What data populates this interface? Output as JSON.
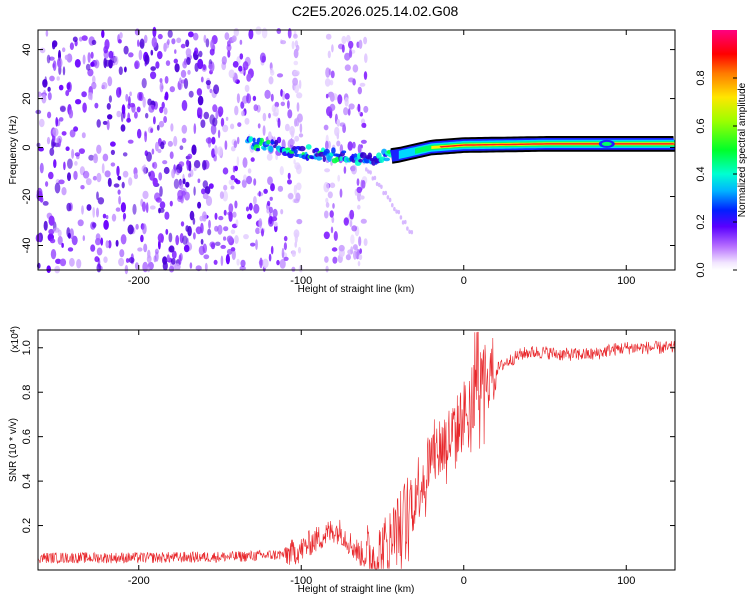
{
  "figure_title": "C2E5.2026.025.14.02.G08",
  "chart_data": [
    {
      "type": "heatmap",
      "title": "C2E5.2026.025.14.02.G08",
      "xlabel": "Height of straight line (km)",
      "ylabel": "Frequency (Hz)",
      "xlim": [
        -262,
        130
      ],
      "ylim": [
        -50,
        48
      ],
      "x_ticks": [
        -200,
        -100,
        0,
        100
      ],
      "y_ticks": [
        -40,
        -20,
        0,
        20,
        40
      ],
      "x_tick_labels": [
        "-200",
        "-100",
        "0",
        "100"
      ],
      "y_tick_labels": [
        "-40",
        "-20",
        "0",
        "20",
        "40"
      ],
      "colorbar": {
        "label": "Normalized spectral amplitude",
        "range": [
          0.0,
          1.0
        ],
        "ticks": [
          0.0,
          0.2,
          0.4,
          0.6,
          0.8
        ],
        "tick_labels": [
          "0.0",
          "0.2",
          "0.4",
          "0.6",
          "0.8"
        ],
        "colormap": "rainbow (white-violet-blue-cyan-green-yellow-red-magenta)"
      },
      "features": {
        "noise_region_km": [
          -262,
          -105
        ],
        "noise_gap_km": [
          -100,
          -85
        ],
        "noise_strip_km": [
          -85,
          -60
        ],
        "signal_line_start_km": -133,
        "signal_line_end_km": 130,
        "signal_frequency_hz": [
          [
            -133,
            1.5
          ],
          [
            -100,
            -1.5
          ],
          [
            -60,
            -5
          ],
          [
            -40,
            -3
          ],
          [
            -20,
            0
          ],
          [
            0,
            1
          ],
          [
            50,
            1.5
          ],
          [
            130,
            1.5
          ]
        ],
        "faint_tail": [
          [
            -60,
            -8
          ],
          [
            -45,
            -20
          ],
          [
            -32,
            -35
          ]
        ]
      }
    },
    {
      "type": "line",
      "xlabel": "Height of straight line (km)",
      "ylabel": "SNR (10 * v/v)",
      "scale_label": "(x10",
      "scale_exponent": "4",
      "xlim": [
        -262,
        130
      ],
      "ylim": [
        0.0,
        1.08
      ],
      "x_ticks": [
        -200,
        -100,
        0,
        100
      ],
      "y_ticks": [
        0.2,
        0.4,
        0.6,
        0.8,
        1.0
      ],
      "x_tick_labels": [
        "-200",
        "-100",
        "0",
        "100"
      ],
      "y_tick_labels": [
        "0.2",
        "0.4",
        "0.6",
        "0.8",
        "1.0"
      ],
      "series": [
        {
          "name": "SNR",
          "color": "#e8262a",
          "envelope": {
            "x": [
              -262,
              -200,
              -140,
              -110,
              -100,
              -95,
              -90,
              -85,
              -80,
              -75,
              -70,
              -65,
              -60,
              -55,
              -50,
              -45,
              -40,
              -35,
              -30,
              -25,
              -20,
              -15,
              -10,
              -5,
              0,
              5,
              10,
              15,
              20,
              25,
              30,
              35,
              40,
              50,
              60,
              70,
              80,
              90,
              100,
              110,
              120,
              130
            ],
            "y": [
              0.055,
              0.055,
              0.06,
              0.07,
              0.09,
              0.12,
              0.14,
              0.16,
              0.18,
              0.17,
              0.12,
              0.08,
              0.06,
              0.05,
              0.08,
              0.13,
              0.19,
              0.27,
              0.35,
              0.42,
              0.5,
              0.55,
              0.58,
              0.62,
              0.7,
              0.78,
              0.84,
              0.88,
              0.9,
              0.93,
              0.95,
              0.97,
              0.98,
              0.98,
              0.97,
              0.97,
              0.97,
              0.99,
              1.0,
              1.0,
              1.0,
              1.0
            ]
          }
        }
      ]
    }
  ]
}
